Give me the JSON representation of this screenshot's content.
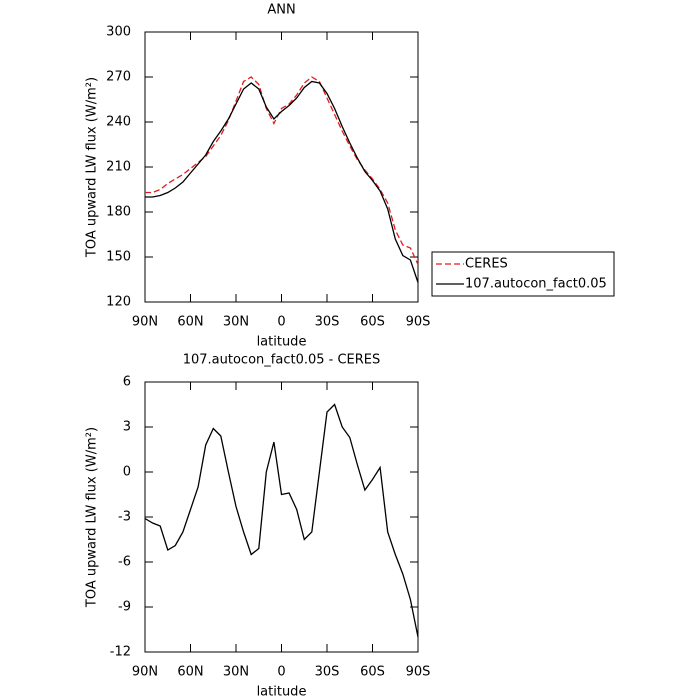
{
  "chart_data": [
    {
      "type": "line",
      "title": "ANN",
      "xlabel": "latitude",
      "ylabel": "TOA upward LW flux (W/m²)",
      "x": [
        90,
        85,
        80,
        75,
        70,
        65,
        60,
        55,
        50,
        45,
        40,
        35,
        30,
        25,
        20,
        15,
        10,
        5,
        0,
        -5,
        -10,
        -15,
        -20,
        -25,
        -30,
        -35,
        -40,
        -45,
        -50,
        -55,
        -60,
        -65,
        -70,
        -75,
        -80,
        -85,
        -90
      ],
      "series": [
        {
          "name": "CERES",
          "color": "#e41a1c",
          "dash": true,
          "values": [
            193,
            193,
            195,
            199,
            202,
            205,
            209,
            213,
            217,
            224,
            231,
            241,
            254,
            267,
            270,
            265,
            249,
            239,
            249,
            252,
            258,
            266,
            270,
            267,
            256,
            245,
            234,
            224,
            215,
            208,
            202,
            195,
            186,
            168,
            158,
            156,
            145
          ]
        },
        {
          "name": "107.autocon_fact0.05",
          "color": "#000000",
          "dash": false,
          "values": [
            190,
            190,
            191,
            193,
            196,
            200,
            206,
            212,
            218,
            227,
            234,
            242,
            252,
            262,
            266,
            262,
            250,
            242,
            247,
            251,
            256,
            263,
            267,
            266,
            259,
            249,
            237,
            226,
            216,
            207,
            201,
            194,
            182,
            162,
            151,
            148,
            133
          ]
        }
      ],
      "xlim": [
        90,
        -90
      ],
      "xticks": [
        {
          "value": 90,
          "label": "90N"
        },
        {
          "value": 60,
          "label": "60N"
        },
        {
          "value": 30,
          "label": "30N"
        },
        0,
        {
          "value": -30,
          "label": "30S"
        },
        {
          "value": -60,
          "label": "60S"
        },
        {
          "value": -90,
          "label": "90S"
        }
      ],
      "ylim": [
        120,
        300
      ],
      "yticks": [
        120,
        150,
        180,
        210,
        240,
        270,
        300
      ],
      "legend": "right"
    },
    {
      "type": "line",
      "title": "107.autocon_fact0.05 - CERES",
      "xlabel": "latitude",
      "ylabel": "TOA upward LW flux (W/m²)",
      "x": [
        90,
        85,
        80,
        75,
        70,
        65,
        60,
        55,
        50,
        45,
        40,
        35,
        30,
        25,
        20,
        15,
        10,
        5,
        0,
        -5,
        -10,
        -15,
        -20,
        -25,
        -30,
        -35,
        -40,
        -45,
        -50,
        -55,
        -60,
        -65,
        -70,
        -75,
        -80,
        -85,
        -90
      ],
      "values": [
        -3.1,
        -3.4,
        -3.6,
        -5.2,
        -4.9,
        -4.0,
        -2.5,
        -1.0,
        1.8,
        2.9,
        2.4,
        0,
        -2.3,
        -4.0,
        -5.5,
        -5.1,
        0,
        2.0,
        -1.5,
        -1.4,
        -2.5,
        -4.5,
        -4.0,
        0,
        4.0,
        4.5,
        3.0,
        2.3,
        0.5,
        -1.2,
        -0.5,
        0.3,
        -4.0,
        -5.5,
        -6.8,
        -8.5,
        -11
      ],
      "color": "#000000",
      "xlim": [
        90,
        -90
      ],
      "xticks": [
        {
          "value": 90,
          "label": "90N"
        },
        {
          "value": 60,
          "label": "60N"
        },
        {
          "value": 30,
          "label": "30N"
        },
        0,
        {
          "value": -30,
          "label": "30S"
        },
        {
          "value": -60,
          "label": "60S"
        },
        {
          "value": -90,
          "label": "90S"
        }
      ],
      "ylim": [
        -12,
        6
      ],
      "yticks": [
        -12,
        -9,
        -6,
        -3,
        0,
        3,
        6
      ]
    }
  ]
}
